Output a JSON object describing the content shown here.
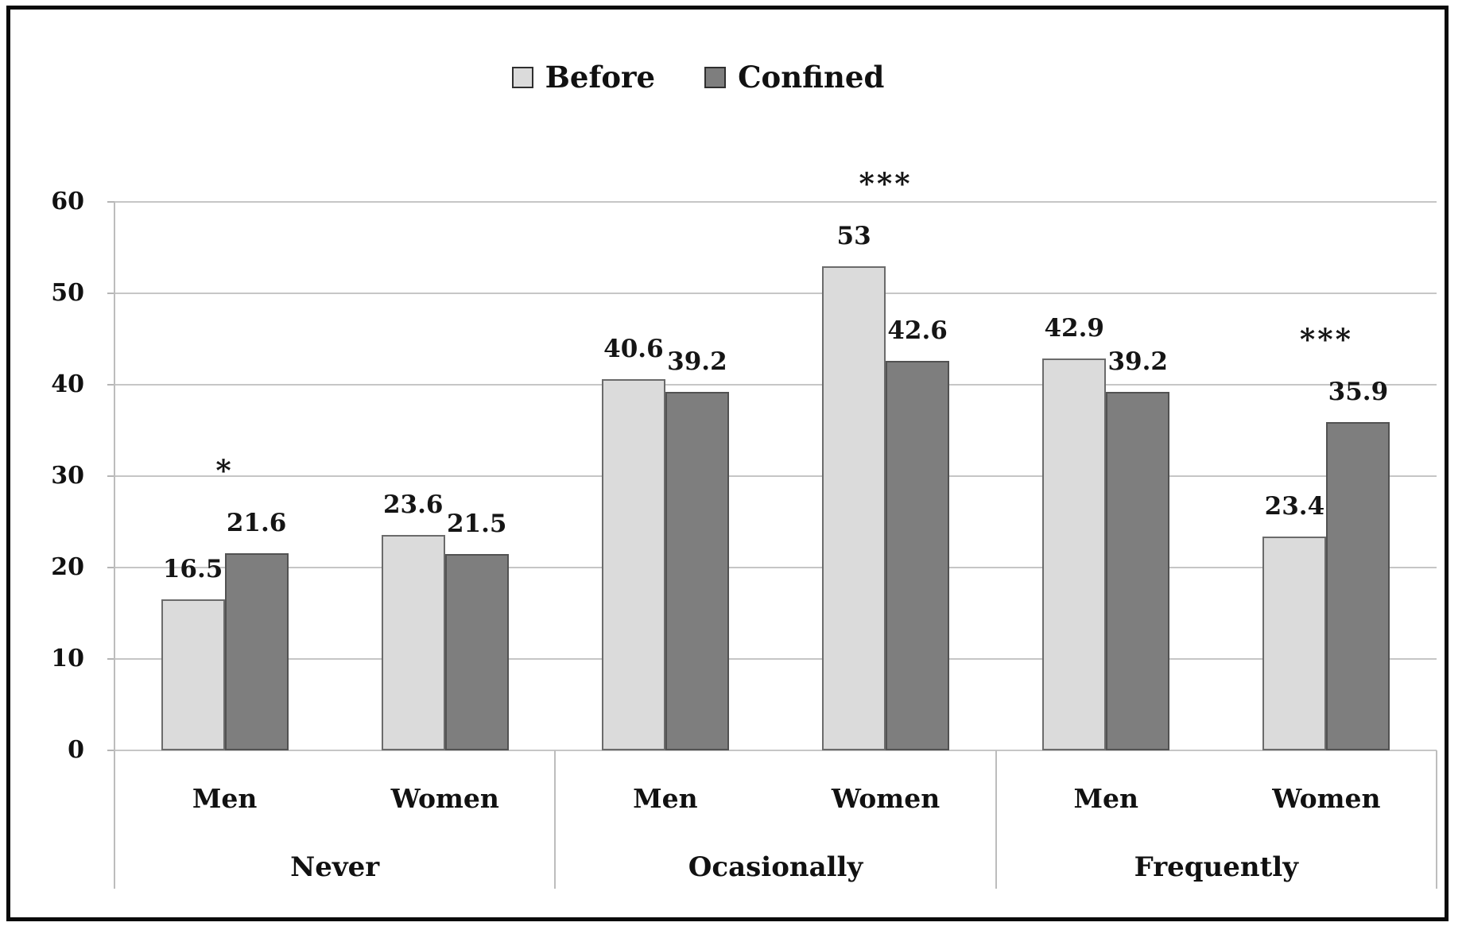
{
  "legend": {
    "items": [
      {
        "label": "Before",
        "color": "#dbdbdb",
        "border": "#2f2f2f"
      },
      {
        "label": "Confined",
        "color": "#7e7e7e",
        "border": "#2f2f2f"
      }
    ]
  },
  "chart_data": {
    "type": "grouped-bar",
    "title": "",
    "legend": [
      "Before",
      "Confined"
    ],
    "legend_position": "top",
    "grid": true,
    "colors": {
      "Before": "#dbdbdb",
      "Confined": "#7e7e7e"
    },
    "border_colors": {
      "Before": "#6b6b6b",
      "Confined": "#525252"
    },
    "y_axis": {
      "min": 0,
      "max": 60,
      "step": 10,
      "ticks": [
        "0",
        "10",
        "20",
        "30",
        "40",
        "50",
        "60"
      ]
    },
    "groups": [
      {
        "label": "Never",
        "categories": [
          {
            "label": "Men",
            "values": {
              "Before": 16.5,
              "Confined": 21.6
            },
            "significance": "*"
          },
          {
            "label": "Women",
            "values": {
              "Before": 23.6,
              "Confined": 21.5
            },
            "significance": ""
          }
        ]
      },
      {
        "label": "Ocasionally",
        "categories": [
          {
            "label": "Men",
            "values": {
              "Before": 40.6,
              "Confined": 39.2
            },
            "significance": ""
          },
          {
            "label": "Women",
            "values": {
              "Before": 53,
              "Confined": 42.6
            },
            "significance": "***"
          }
        ]
      },
      {
        "label": "Frequently",
        "categories": [
          {
            "label": "Men",
            "values": {
              "Before": 42.9,
              "Confined": 39.2
            },
            "significance": ""
          },
          {
            "label": "Women",
            "values": {
              "Before": 23.4,
              "Confined": 35.9
            },
            "significance": "***"
          }
        ]
      }
    ]
  }
}
